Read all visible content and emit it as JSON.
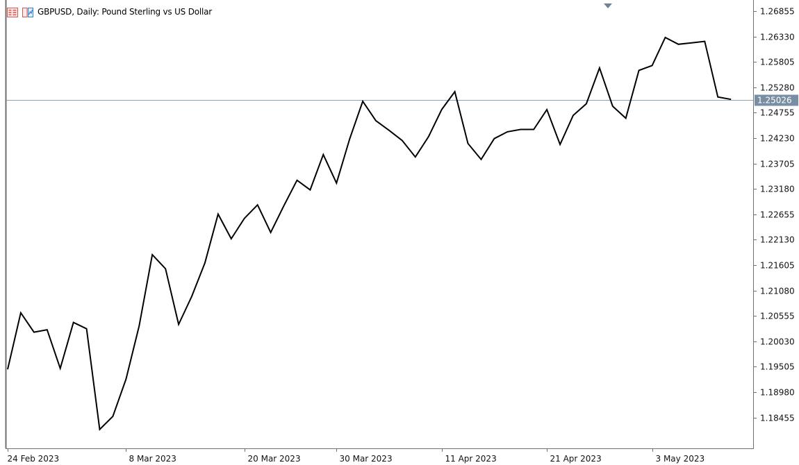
{
  "header": {
    "title": "GBPUSD, Daily:  Pound Sterling vs US Dollar",
    "icons": [
      "list-icon",
      "chart-window-icon"
    ]
  },
  "current_price": {
    "value": 1.25026,
    "label": "1.25026"
  },
  "colors": {
    "line": "#000000",
    "grid_axis": "#6f6f6f",
    "price_line": "#8ea0b3",
    "price_tag_bg": "#7a8ea3",
    "marker": "#6e8296",
    "icon_red": "#d9534f",
    "icon_blue": "#2f7ed8"
  },
  "chart_data": {
    "type": "line",
    "symbol": "GBPUSD",
    "timeframe": "Daily",
    "x": [
      "2023-02-24",
      "2023-02-27",
      "2023-02-28",
      "2023-03-01",
      "2023-03-02",
      "2023-03-03",
      "2023-03-06",
      "2023-03-07",
      "2023-03-08",
      "2023-03-09",
      "2023-03-10",
      "2023-03-13",
      "2023-03-14",
      "2023-03-15",
      "2023-03-16",
      "2023-03-17",
      "2023-03-20",
      "2023-03-21",
      "2023-03-22",
      "2023-03-23",
      "2023-03-24",
      "2023-03-27",
      "2023-03-28",
      "2023-03-29",
      "2023-03-30",
      "2023-03-31",
      "2023-04-03",
      "2023-04-04",
      "2023-04-05",
      "2023-04-06",
      "2023-04-07",
      "2023-04-10",
      "2023-04-11",
      "2023-04-12",
      "2023-04-13",
      "2023-04-14",
      "2023-04-17",
      "2023-04-18",
      "2023-04-19",
      "2023-04-20",
      "2023-04-21",
      "2023-04-24",
      "2023-04-25",
      "2023-04-26",
      "2023-04-27",
      "2023-04-28",
      "2023-05-01",
      "2023-05-02",
      "2023-05-03",
      "2023-05-04",
      "2023-05-05",
      "2023-05-08",
      "2023-05-09",
      "2023-05-10",
      "2023-05-11",
      "2023-05-12"
    ],
    "values": [
      1.1945,
      1.2062,
      1.2022,
      1.2027,
      1.1947,
      1.2042,
      1.2029,
      1.1821,
      1.1848,
      1.1925,
      1.2035,
      1.2182,
      1.2153,
      1.2038,
      1.2096,
      1.2165,
      1.2266,
      1.2215,
      1.2257,
      1.2285,
      1.2228,
      1.2283,
      1.2336,
      1.2316,
      1.2389,
      1.233,
      1.2421,
      1.2499,
      1.2459,
      1.2439,
      1.2418,
      1.2384,
      1.2426,
      1.2482,
      1.2519,
      1.2412,
      1.2379,
      1.2422,
      1.2436,
      1.2441,
      1.2441,
      1.2482,
      1.241,
      1.247,
      1.2494,
      1.2568,
      1.2489,
      1.2464,
      1.2563,
      1.2573,
      1.2631,
      1.2617,
      1.262,
      1.2623,
      1.2508,
      1.2503
    ],
    "x_tick_labels": [
      "24 Feb 2023",
      "8 Mar 2023",
      "20 Mar 2023",
      "30 Mar 2023",
      "11 Apr 2023",
      "21 Apr 2023",
      "3 May 2023"
    ],
    "y_tick_labels": [
      "1.26855",
      "1.26330",
      "1.25805",
      "1.25280",
      "1.24755",
      "1.24230",
      "1.23705",
      "1.23180",
      "1.22655",
      "1.22130",
      "1.21605",
      "1.21080",
      "1.20555",
      "1.20030",
      "1.19505",
      "1.18980",
      "1.18455"
    ],
    "ylim": [
      1.17955,
      1.26855
    ],
    "grid": false,
    "legend": "none"
  }
}
